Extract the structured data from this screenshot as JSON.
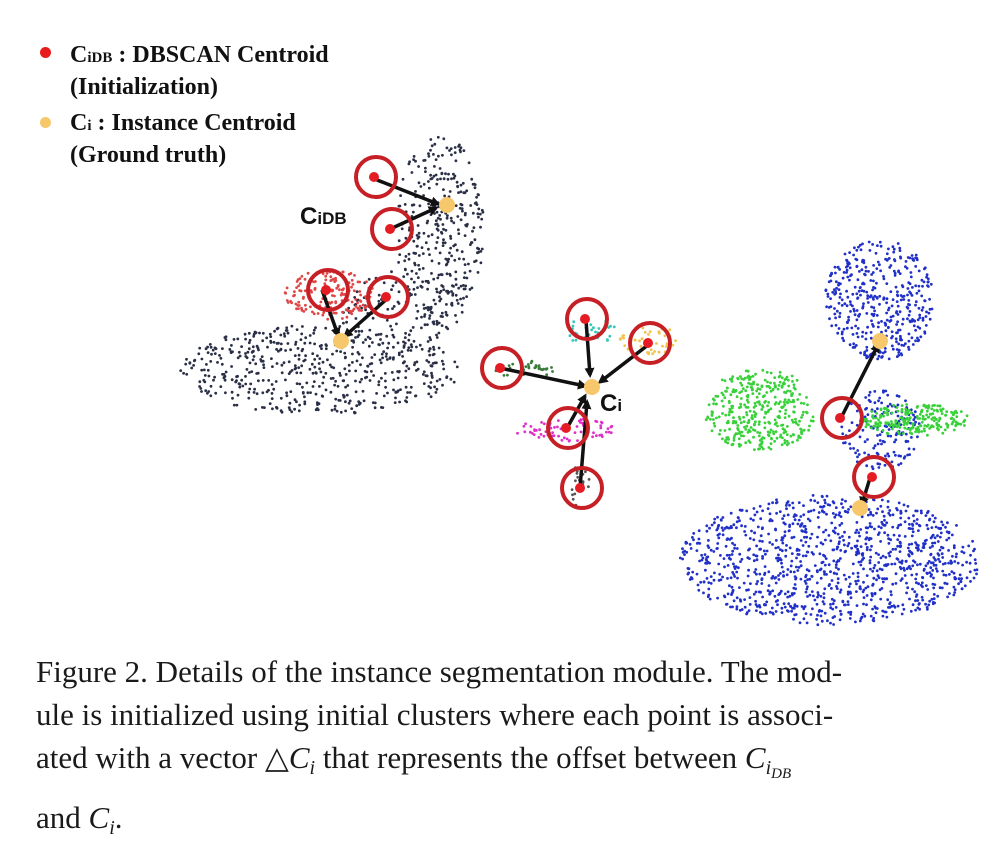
{
  "legend": {
    "dbscan": {
      "prefix": "C",
      "sub": "iDB",
      "sep": " : ",
      "label": "DBSCAN Centroid",
      "note": "(Initialization)",
      "color": "#e81c1c"
    },
    "instance": {
      "prefix": "C",
      "sub": "i",
      "sep": " : ",
      "label": "Instance Centroid",
      "note": "(Ground truth)",
      "color": "#f6c86b"
    }
  },
  "figure_labels": {
    "cidb": {
      "main": "C",
      "sub": "iDB"
    },
    "ci": {
      "main": "C",
      "sub": "i"
    }
  },
  "colors": {
    "chair_points": "#2a2f45",
    "red_cluster": "#e04545",
    "blue_points": "#2030c8",
    "green_points": "#39d13a",
    "circle_stroke": "#c62026",
    "centroid_red": "#e61c24",
    "centroid_yellow": "#f6c86b",
    "arrow": "#111111"
  },
  "caption": {
    "line1": "Figure 2. Details of the instance segmentation module. The mod-",
    "line2": "ule is initialized using initial clusters where each point is associ-",
    "line3_a": "ated with a vector ",
    "line3_delta": "△",
    "line3_ci": "C",
    "line3_ci_sub": "i",
    "line3_b": " that represents the offset between ",
    "line3_cidb": "C",
    "line3_cidb_sub": "i",
    "line3_cidb_subsub": "DB",
    "line4_a": "and ",
    "line4_ci": "C",
    "line4_ci_sub": "i",
    "line4_b": "."
  }
}
